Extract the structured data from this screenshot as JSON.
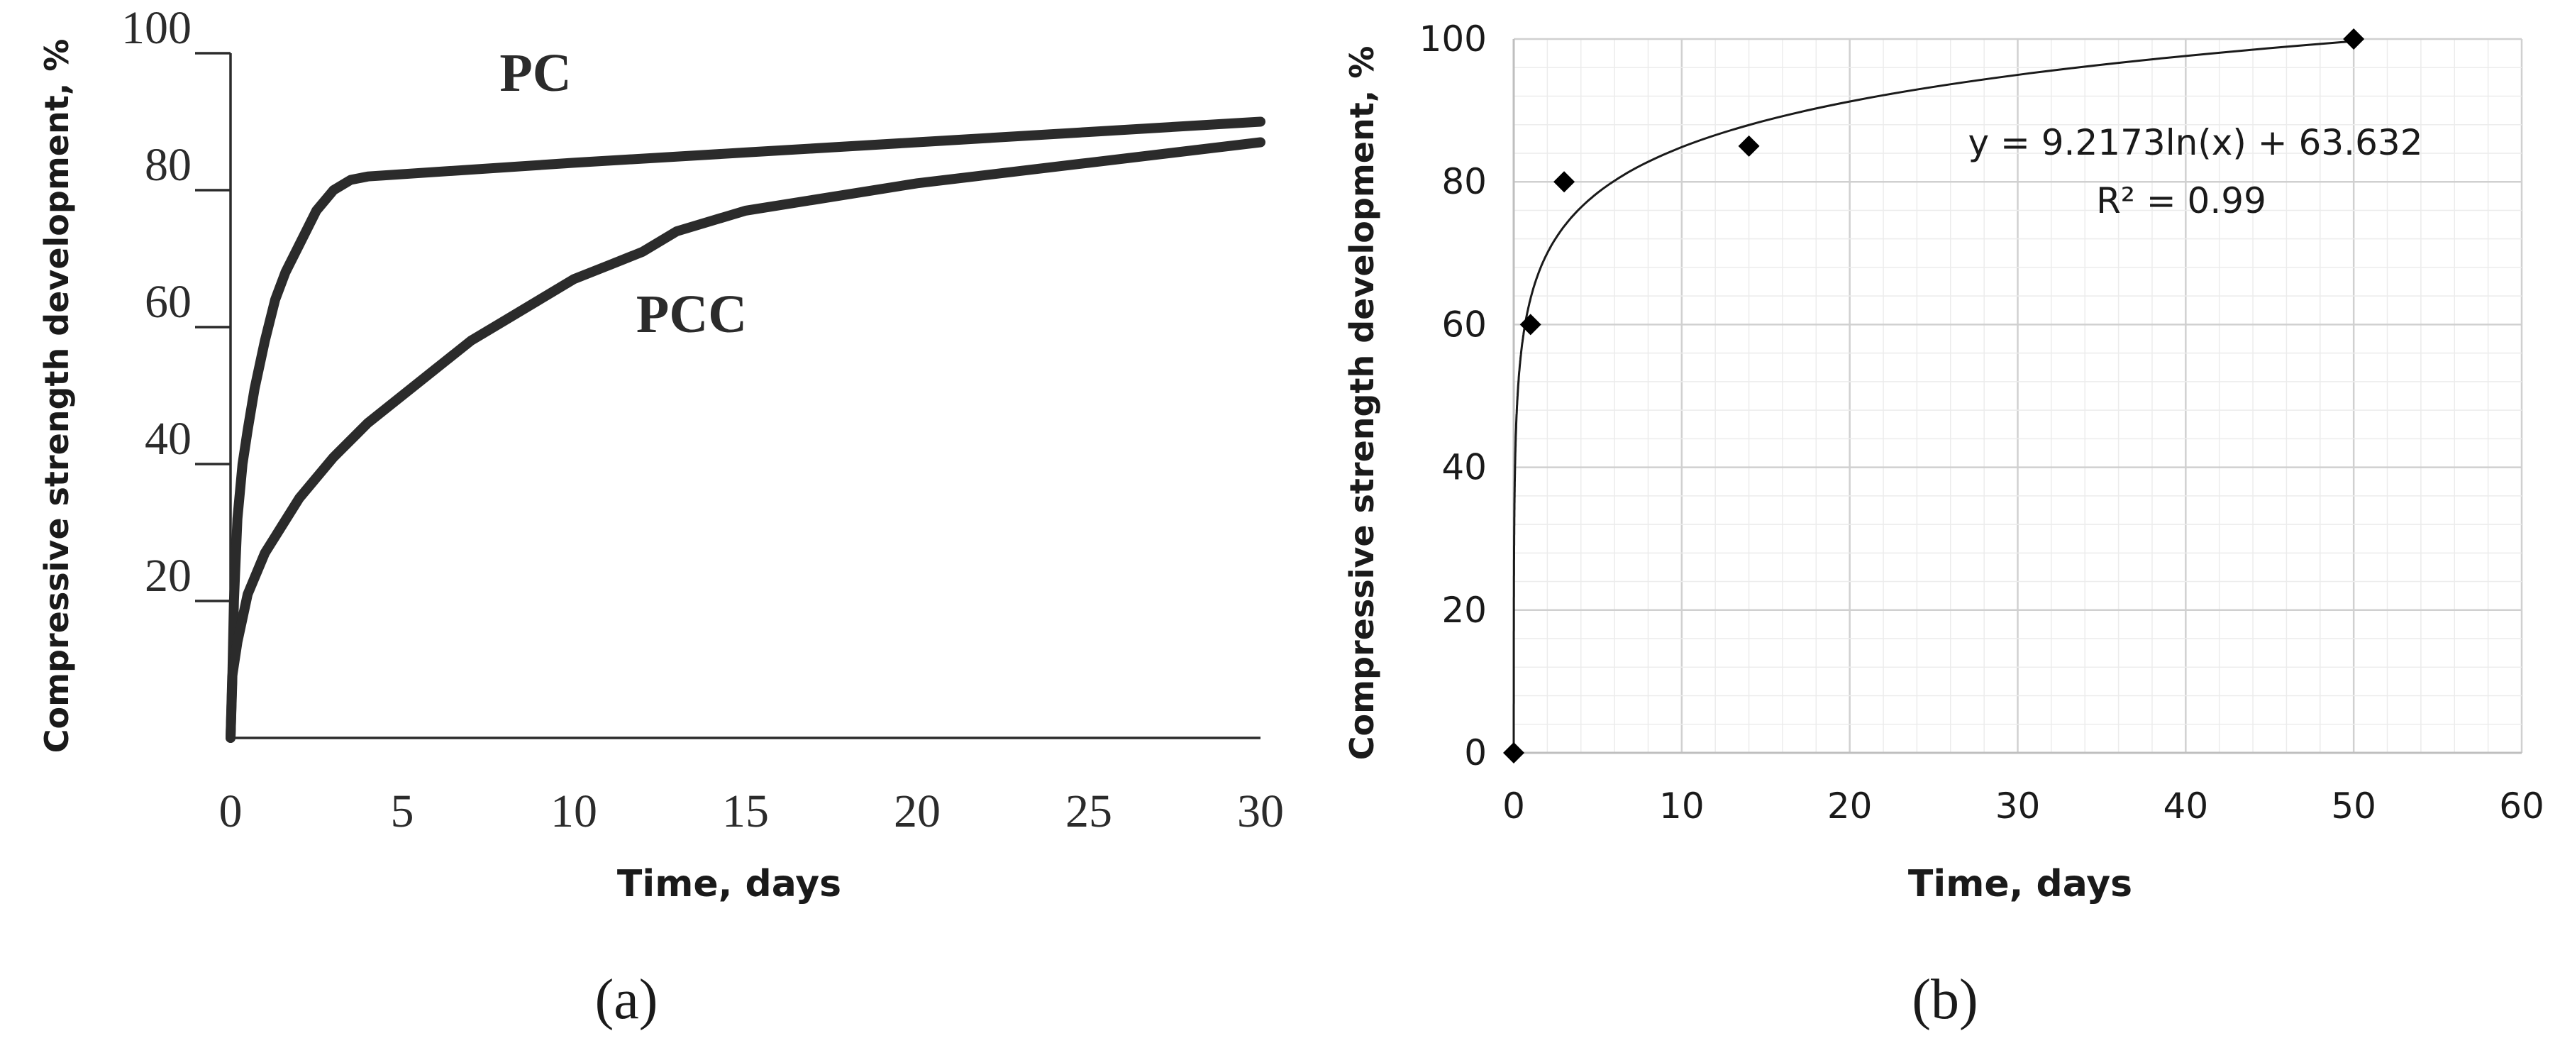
{
  "chart_data": [
    {
      "type": "line",
      "xlabel": "Time, days",
      "ylabel": "Compressive strength development, %",
      "xlim": [
        0,
        30
      ],
      "ylim": [
        0,
        100
      ],
      "xticks": [
        "0",
        "5",
        "10",
        "15",
        "20",
        "25",
        "30"
      ],
      "yticks": [
        "20",
        "40",
        "60",
        "80",
        "100"
      ],
      "grid": false,
      "panel_label": "(a)",
      "series": [
        {
          "name": "PC",
          "x": [
            0,
            0.05,
            0.1,
            0.2,
            0.35,
            0.5,
            0.7,
            1.0,
            1.3,
            1.6,
            2.0,
            2.5,
            3.0,
            3.5,
            4.0,
            10,
            15,
            20,
            25,
            30
          ],
          "y": [
            0,
            8,
            20,
            32,
            40,
            45,
            51,
            58,
            64,
            68,
            72,
            77,
            80,
            81.5,
            82,
            84,
            85.5,
            87,
            88.5,
            90
          ]
        },
        {
          "name": "PCC",
          "x": [
            0,
            0.05,
            0.2,
            0.5,
            1.0,
            1.5,
            2.0,
            3.0,
            4.0,
            5.0,
            6.0,
            7.0,
            8.0,
            9.0,
            10,
            11,
            12,
            13,
            15,
            20,
            25,
            30
          ],
          "y": [
            0,
            9,
            14,
            21,
            27,
            31,
            35,
            41,
            46,
            50,
            54,
            58,
            61,
            64,
            67,
            69,
            71,
            74,
            77,
            81,
            84,
            87
          ]
        }
      ]
    },
    {
      "type": "scatter",
      "xlabel": "Time, days",
      "ylabel": "Compressive strength development, %",
      "xlim": [
        0,
        60
      ],
      "ylim": [
        0,
        100
      ],
      "xticks": [
        "0",
        "10",
        "20",
        "30",
        "40",
        "50",
        "60"
      ],
      "yticks": [
        "0",
        "20",
        "40",
        "60",
        "80",
        "100"
      ],
      "grid": true,
      "panel_label": "(b)",
      "points": {
        "x": [
          0,
          1,
          3,
          14,
          50
        ],
        "y": [
          0,
          60,
          80,
          85,
          100
        ]
      },
      "trendline": {
        "type": "logarithmic",
        "a": 9.2173,
        "b": 63.632
      },
      "equation": "y = 9.2173ln(x) + 63.632",
      "r_squared": "R² = 0.99"
    }
  ]
}
